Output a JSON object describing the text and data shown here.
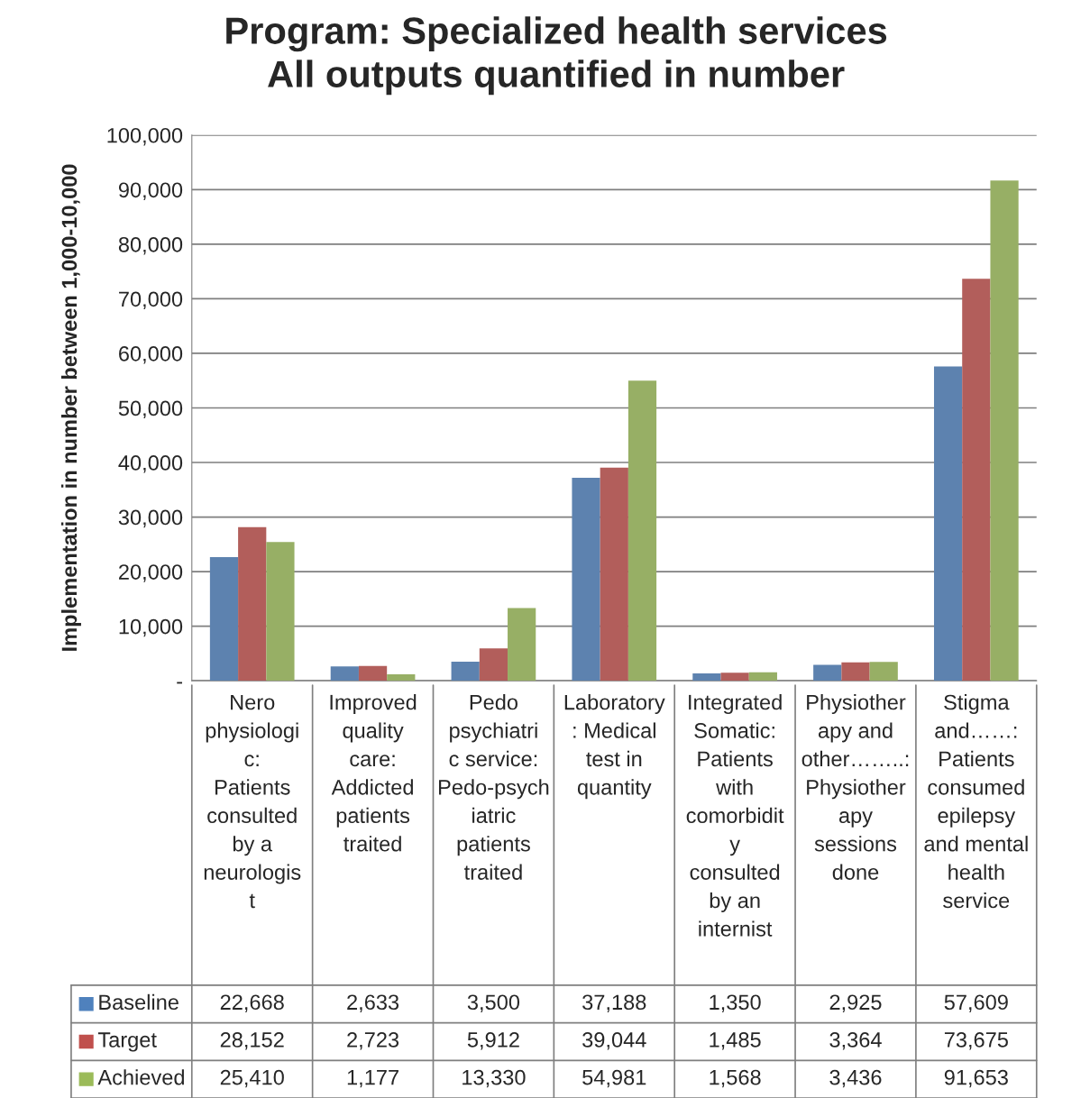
{
  "chart_data": {
    "type": "bar",
    "title": "Program: Specialized health services\nAll outputs quantified in number",
    "ylabel": "Implementation in number between 1,000-10,000",
    "categories": [
      "Nero physiologic: Patients consulted by a neurologist",
      "Improved quality care: Addicted patients traited",
      "Pedo psychiatric service: Pedo-psychiatric patients traited",
      "Laboratory: Medical test in quantity",
      "Integrated Somatic: Patients with comorbidity consulted by an internist",
      "Physiotherapy and other……..: Physiotherapy sessions done",
      "Stigma and……: Patients consumed epilepsy and mental health service"
    ],
    "series": [
      {
        "name": "Baseline",
        "color": "#4f81bd",
        "values": [
          22668,
          2633,
          3500,
          37188,
          1350,
          2925,
          57609
        ],
        "value_labels": [
          "22,668",
          "2,633",
          "3,500",
          "37,188",
          "1,350",
          "2,925",
          "57,609"
        ]
      },
      {
        "name": "Target",
        "color": "#c0504d",
        "values": [
          28152,
          2723,
          5912,
          39044,
          1485,
          3364,
          73675
        ],
        "value_labels": [
          "28,152",
          "2,723",
          "5,912",
          "39,044",
          "1,485",
          "3,364",
          "73,675"
        ]
      },
      {
        "name": "Achieved",
        "color": "#9bbb59",
        "values": [
          25410,
          1177,
          13330,
          54981,
          1568,
          3436,
          91653
        ],
        "value_labels": [
          "25,410",
          "1,177",
          "13,330",
          "54,981",
          "1,568",
          "3,436",
          "91,653"
        ]
      }
    ],
    "ylim": [
      0,
      100000
    ],
    "yticks": [
      {
        "value": 0,
        "label": "-"
      },
      {
        "value": 10000,
        "label": "10,000"
      },
      {
        "value": 20000,
        "label": "20,000"
      },
      {
        "value": 30000,
        "label": "30,000"
      },
      {
        "value": 40000,
        "label": "40,000"
      },
      {
        "value": 50000,
        "label": "50,000"
      },
      {
        "value": 60000,
        "label": "60,000"
      },
      {
        "value": 70000,
        "label": "70,000"
      },
      {
        "value": 80000,
        "label": "80,000"
      },
      {
        "value": 90000,
        "label": "90,000"
      },
      {
        "value": 100000,
        "label": "100,000"
      }
    ],
    "grid": "y",
    "legend": "bottom"
  }
}
